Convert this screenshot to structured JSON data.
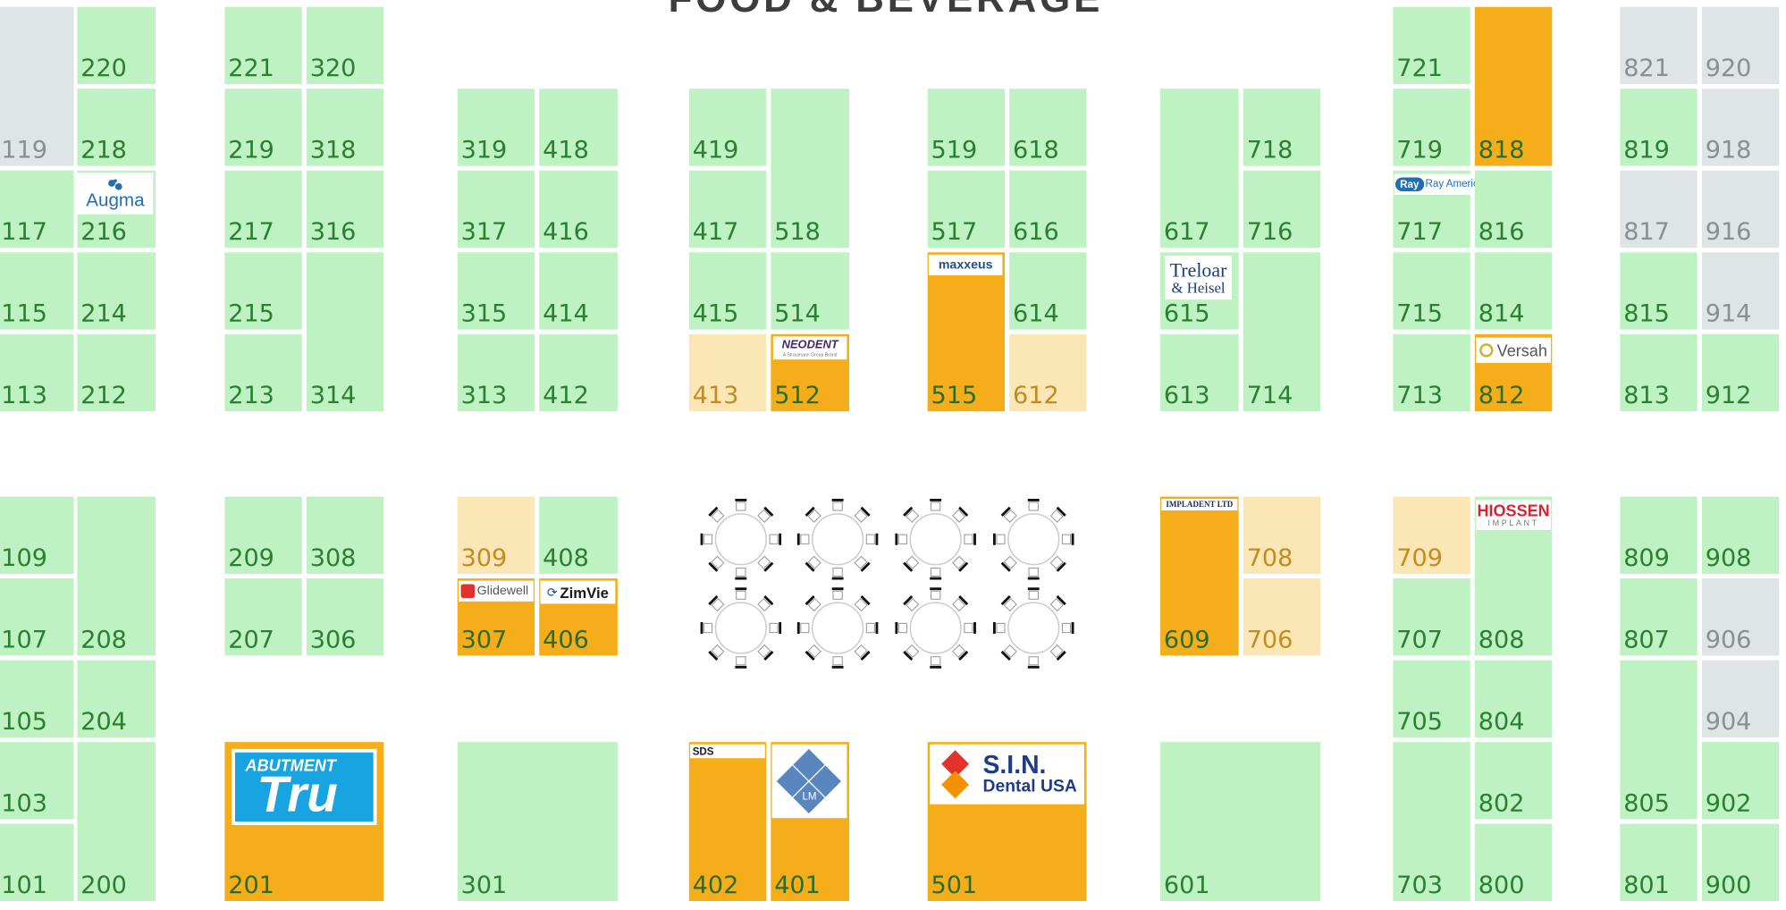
{
  "map": {
    "title": "FOOD & BEVERAGE"
  },
  "colors": {
    "available": "#bff2c2",
    "sold": "#f5ae1a",
    "reserved": "#fbe6b5",
    "unavailable": "#dfe4e6",
    "booth_number_text": "#2b7f33"
  },
  "exhibitors": {
    "augma": "Augma",
    "ray_america": "Ray America",
    "maxxeus": "maxxeus",
    "neodent_name": "NEODENT",
    "neodent_tagline": "A Straumann Group Brand",
    "treloar_line1": "Treloar",
    "treloar_line2": "& Heisel",
    "versah": "Versah",
    "glidewell": "Glidewell",
    "zimvie": "ZimVie",
    "implladent": "IMPLADENT LTD",
    "hiossen_name": "HIOSSEN",
    "hiossen_sub": "IMPLANT",
    "abutment_line1": "ABUTMENT",
    "abutment_line2": "Tru",
    "sds": "SDS",
    "lm": "LM",
    "sin_line1": "S.I.N.",
    "sin_line2": "Dental USA"
  },
  "booths": {
    "b100": "",
    "b101": "101",
    "b103": "103",
    "b105": "105",
    "b107": "107",
    "b109": "109",
    "b113": "113",
    "b115": "115",
    "b117": "117",
    "b119": "119",
    "b200": "200",
    "b201": "201",
    "b204": "204",
    "b207": "207",
    "b208": "208",
    "b209": "209",
    "b212": "212",
    "b213": "213",
    "b214": "214",
    "b215": "215",
    "b216": "216",
    "b217": "217",
    "b218": "218",
    "b219": "219",
    "b220": "220",
    "b221": "221",
    "b301": "301",
    "b306": "306",
    "b307": "307",
    "b308": "308",
    "b309": "309",
    "b313": "313",
    "b314": "314",
    "b315": "315",
    "b316": "316",
    "b317": "317",
    "b318": "318",
    "b319": "319",
    "b320": "320",
    "b401": "401",
    "b402": "402",
    "b406": "406",
    "b408": "408",
    "b412": "412",
    "b413": "413",
    "b414": "414",
    "b415": "415",
    "b416": "416",
    "b417": "417",
    "b418": "418",
    "b419": "419",
    "b501": "501",
    "b512": "512",
    "b514": "514",
    "b515": "515",
    "b517": "517",
    "b518": "518",
    "b519": "519",
    "b601": "601",
    "b609": "609",
    "b612": "612",
    "b613": "613",
    "b614": "614",
    "b615": "615",
    "b616": "616",
    "b617": "617",
    "b618": "618",
    "b703": "703",
    "b705": "705",
    "b706": "706",
    "b707": "707",
    "b708": "708",
    "b709": "709",
    "b713": "713",
    "b714": "714",
    "b715": "715",
    "b716": "716",
    "b717": "717",
    "b718": "718",
    "b719": "719",
    "b721": "721",
    "b800": "800",
    "b801": "801",
    "b802": "802",
    "b804": "804",
    "b805": "805",
    "b807": "807",
    "b808": "808",
    "b809": "809",
    "b812": "812",
    "b813": "813",
    "b814": "814",
    "b815": "815",
    "b816": "816",
    "b817": "817",
    "b818": "818",
    "b819": "819",
    "b821": "821",
    "b900": "900",
    "b902": "902",
    "b904": "904",
    "b906": "906",
    "b908": "908",
    "b912": "912",
    "b914": "914",
    "b916": "916",
    "b918": "918",
    "b920": "920"
  }
}
